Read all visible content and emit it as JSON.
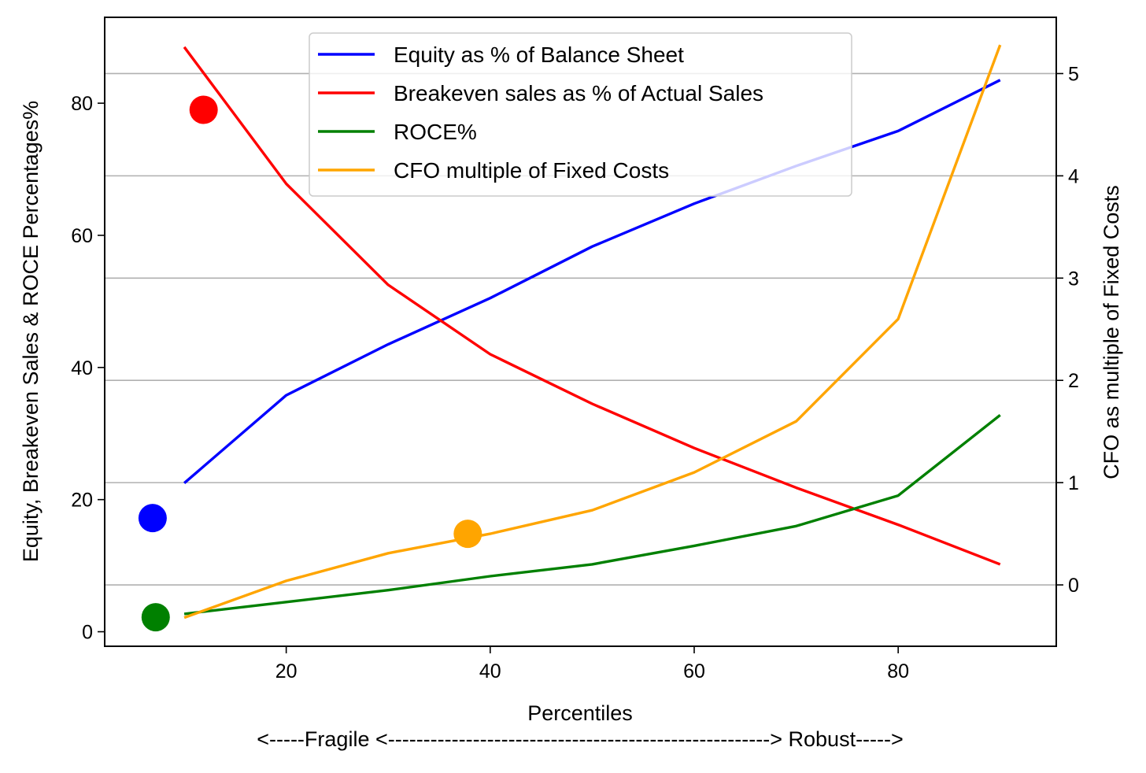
{
  "chart_data": {
    "type": "line",
    "title": "",
    "xlabel": "Percentiles",
    "xlabel2": "<-----Fragile <------------------------------------------------------> Robust----->",
    "ylabel": "Equity, Breakeven Sales & ROCE Percentages%",
    "y2label": "CFO as multiple of Fixed Costs",
    "xlim": [
      2.2,
      95.5
    ],
    "ylim": [
      -2.2,
      93.0
    ],
    "y2lim": [
      -0.6,
      5.55
    ],
    "xticks": [
      20,
      40,
      60,
      80
    ],
    "yticks": [
      0,
      20,
      40,
      60,
      80
    ],
    "y2ticks": [
      0,
      1,
      2,
      3,
      4,
      5
    ],
    "grid": "horizontal lines at secondary-axis ticks",
    "legend": "top-center",
    "series": [
      {
        "name": "Equity as % of Balance Sheet",
        "axis": "left",
        "color": "#0000ff",
        "x": [
          10,
          20,
          30,
          40,
          50,
          60,
          70,
          80,
          90
        ],
        "y": [
          22.5,
          35.8,
          43.5,
          50.5,
          58.3,
          64.8,
          70.5,
          75.8,
          83.5
        ]
      },
      {
        "name": "Breakeven sales as % of Actual Sales",
        "axis": "left",
        "color": "#ff0000",
        "x": [
          10,
          20,
          30,
          40,
          50,
          60,
          70,
          80,
          90
        ],
        "y": [
          88.5,
          67.8,
          52.5,
          42.0,
          34.5,
          27.8,
          21.8,
          16.2,
          10.2
        ]
      },
      {
        "name": "ROCE%",
        "axis": "left",
        "color": "#008000",
        "x": [
          10,
          20,
          30,
          40,
          50,
          60,
          70,
          80,
          90
        ],
        "y": [
          2.7,
          4.5,
          6.3,
          8.4,
          10.2,
          13.0,
          16.0,
          20.6,
          32.8
        ]
      },
      {
        "name": "CFO multiple of Fixed Costs",
        "axis": "right",
        "color": "#ffa500",
        "x": [
          10,
          20,
          30,
          40,
          50,
          60,
          70,
          80,
          90
        ],
        "y": [
          -0.32,
          0.04,
          0.31,
          0.5,
          0.73,
          1.1,
          1.6,
          2.6,
          5.28
        ]
      }
    ],
    "markers": [
      {
        "x": 6.9,
        "y": 17.2,
        "axis": "left",
        "color": "#0000ff"
      },
      {
        "x": 11.9,
        "y": 79.0,
        "axis": "left",
        "color": "#ff0000"
      },
      {
        "x": 7.2,
        "y": 2.2,
        "axis": "left",
        "color": "#008000"
      },
      {
        "x": 37.8,
        "y": 0.5,
        "axis": "right",
        "color": "#ffa500"
      }
    ]
  }
}
